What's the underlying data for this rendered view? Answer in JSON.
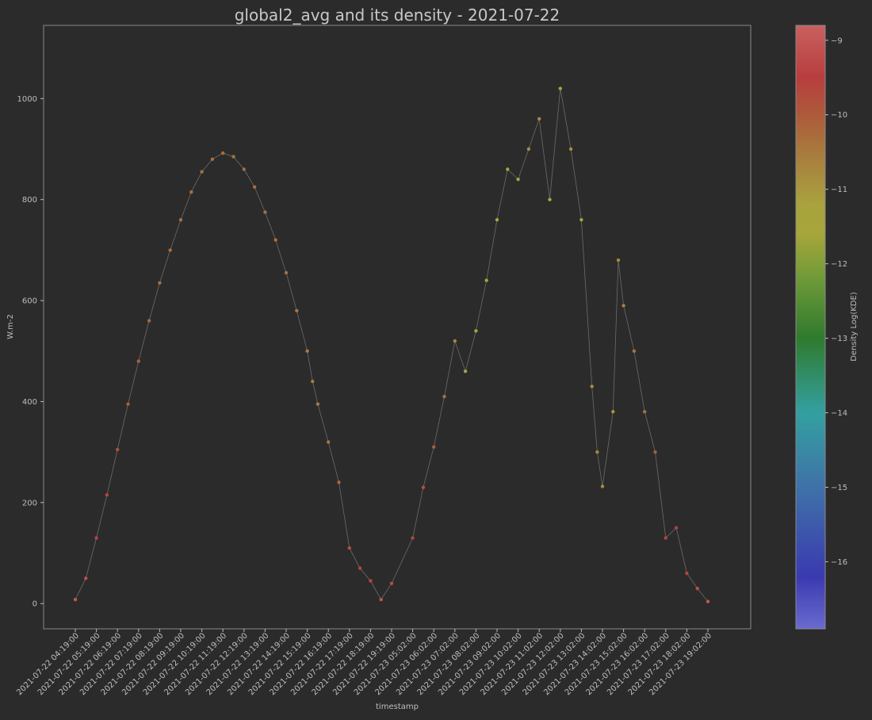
{
  "chart_data": {
    "type": "scatter",
    "title": "global2_avg and its density - 2021-07-22",
    "xlabel": "timestamp",
    "ylabel": "W.m-2",
    "ylim": [
      -50,
      1145
    ],
    "yticks": [
      0,
      200,
      400,
      600,
      800,
      1000
    ],
    "grid": false,
    "xtick_labels": [
      "2021-07-22 04:19:00",
      "2021-07-22 05:19:00",
      "2021-07-22 06:19:00",
      "2021-07-22 07:19:00",
      "2021-07-22 08:19:00",
      "2021-07-22 09:19:00",
      "2021-07-22 10:19:00",
      "2021-07-22 11:19:00",
      "2021-07-22 12:19:00",
      "2021-07-22 13:19:00",
      "2021-07-22 14:19:00",
      "2021-07-22 15:19:00",
      "2021-07-22 16:19:00",
      "2021-07-22 17:19:00",
      "2021-07-22 18:19:00",
      "2021-07-22 19:19:00",
      "2021-07-23 05:02:00",
      "2021-07-23 06:02:00",
      "2021-07-23 07:02:00",
      "2021-07-23 08:02:00",
      "2021-07-23 09:02:00",
      "2021-07-23 10:02:00",
      "2021-07-23 11:02:00",
      "2021-07-23 12:02:00",
      "2021-07-23 13:02:00",
      "2021-07-23 14:02:00",
      "2021-07-23 15:02:00",
      "2021-07-23 16:02:00",
      "2021-07-23 17:02:00",
      "2021-07-23 18:02:00",
      "2021-07-23 19:02:00"
    ],
    "series": [
      {
        "points": [
          [
            "2021-07-22 04:19:00",
            8,
            -9.0
          ],
          [
            "2021-07-22 04:49:00",
            50,
            -9.2
          ],
          [
            "2021-07-22 05:19:00",
            130,
            -9.4
          ],
          [
            "2021-07-22 05:49:00",
            215,
            -9.6
          ],
          [
            "2021-07-22 06:19:00",
            305,
            -9.8
          ],
          [
            "2021-07-22 06:49:00",
            395,
            -10.0
          ],
          [
            "2021-07-22 07:19:00",
            480,
            -10.1
          ],
          [
            "2021-07-22 07:49:00",
            560,
            -10.2
          ],
          [
            "2021-07-22 08:19:00",
            635,
            -10.3
          ],
          [
            "2021-07-22 08:49:00",
            700,
            -10.3
          ],
          [
            "2021-07-22 09:19:00",
            760,
            -10.3
          ],
          [
            "2021-07-22 09:49:00",
            815,
            -10.3
          ],
          [
            "2021-07-22 10:19:00",
            855,
            -10.3
          ],
          [
            "2021-07-22 10:49:00",
            880,
            -10.3
          ],
          [
            "2021-07-22 11:19:00",
            892,
            -10.3
          ],
          [
            "2021-07-22 11:49:00",
            885,
            -10.3
          ],
          [
            "2021-07-22 12:19:00",
            860,
            -10.3
          ],
          [
            "2021-07-22 12:49:00",
            825,
            -10.3
          ],
          [
            "2021-07-22 13:19:00",
            775,
            -10.3
          ],
          [
            "2021-07-22 13:49:00",
            720,
            -10.3
          ],
          [
            "2021-07-22 14:19:00",
            655,
            -10.3
          ],
          [
            "2021-07-22 14:49:00",
            580,
            -10.4
          ],
          [
            "2021-07-22 15:19:00",
            500,
            -10.5
          ],
          [
            "2021-07-22 15:34:00",
            440,
            -10.6
          ],
          [
            "2021-07-22 15:49:00",
            395,
            -10.5
          ],
          [
            "2021-07-22 16:19:00",
            320,
            -10.4
          ],
          [
            "2021-07-22 16:49:00",
            240,
            -10.2
          ],
          [
            "2021-07-22 17:19:00",
            110,
            -9.8
          ],
          [
            "2021-07-22 17:49:00",
            70,
            -9.6
          ],
          [
            "2021-07-22 18:19:00",
            45,
            -9.4
          ],
          [
            "2021-07-22 18:49:00",
            8,
            -9.1
          ],
          [
            "2021-07-22 19:19:00",
            40,
            -9.3
          ],
          [
            "2021-07-23 05:02:00",
            130,
            -9.6
          ],
          [
            "2021-07-23 05:32:00",
            230,
            -9.8
          ],
          [
            "2021-07-23 06:02:00",
            310,
            -10.0
          ],
          [
            "2021-07-23 06:32:00",
            410,
            -10.3
          ],
          [
            "2021-07-23 07:02:00",
            520,
            -10.7
          ],
          [
            "2021-07-23 07:32:00",
            460,
            -11.3
          ],
          [
            "2021-07-23 08:02:00",
            540,
            -11.3
          ],
          [
            "2021-07-23 08:32:00",
            640,
            -11.2
          ],
          [
            "2021-07-23 09:02:00",
            760,
            -11.2
          ],
          [
            "2021-07-23 09:32:00",
            860,
            -11.2
          ],
          [
            "2021-07-23 10:02:00",
            840,
            -11.3
          ],
          [
            "2021-07-23 10:32:00",
            900,
            -10.8
          ],
          [
            "2021-07-23 11:02:00",
            960,
            -10.7
          ],
          [
            "2021-07-23 11:32:00",
            800,
            -11.3
          ],
          [
            "2021-07-23 12:02:00",
            1020,
            -11.2
          ],
          [
            "2021-07-23 12:32:00",
            900,
            -10.8
          ],
          [
            "2021-07-23 13:02:00",
            760,
            -11.2
          ],
          [
            "2021-07-23 13:32:00",
            430,
            -10.8
          ],
          [
            "2021-07-23 13:47:00",
            300,
            -10.7
          ],
          [
            "2021-07-23 14:02:00",
            232,
            -10.8
          ],
          [
            "2021-07-23 14:32:00",
            380,
            -10.9
          ],
          [
            "2021-07-23 14:47:00",
            680,
            -10.7
          ],
          [
            "2021-07-23 15:02:00",
            590,
            -10.6
          ],
          [
            "2021-07-23 15:32:00",
            500,
            -10.4
          ],
          [
            "2021-07-23 16:02:00",
            380,
            -10.3
          ],
          [
            "2021-07-23 16:32:00",
            300,
            -10.0
          ],
          [
            "2021-07-23 17:02:00",
            130,
            -9.6
          ],
          [
            "2021-07-23 17:32:00",
            150,
            -9.5
          ],
          [
            "2021-07-23 18:02:00",
            60,
            -9.4
          ],
          [
            "2021-07-23 18:32:00",
            30,
            -9.2
          ],
          [
            "2021-07-23 19:02:00",
            4,
            -9.0
          ]
        ]
      }
    ],
    "colorbar": {
      "label": "Density Log(KDE)",
      "min": -16.9,
      "max": -8.8,
      "ticks": [
        -9,
        -10,
        -11,
        -12,
        -13,
        -14,
        -15,
        -16
      ],
      "tick_labels": [
        "−9",
        "−10",
        "−11",
        "−12",
        "−13",
        "−14",
        "−15",
        "−16"
      ],
      "stops": [
        [
          -8.8,
          "#c96060"
        ],
        [
          -9.5,
          "#b83e3e"
        ],
        [
          -10.0,
          "#ad5a3a"
        ],
        [
          -10.6,
          "#a8803e"
        ],
        [
          -11.2,
          "#a9a23e"
        ],
        [
          -11.6,
          "#a6a63a"
        ],
        [
          -12.2,
          "#6f9a38"
        ],
        [
          -13.0,
          "#2f7a2e"
        ],
        [
          -14.0,
          "#33a0a0"
        ],
        [
          -15.0,
          "#3f72a8"
        ],
        [
          -16.2,
          "#3a3ab0"
        ],
        [
          -16.9,
          "#6a6ad0"
        ]
      ]
    }
  }
}
